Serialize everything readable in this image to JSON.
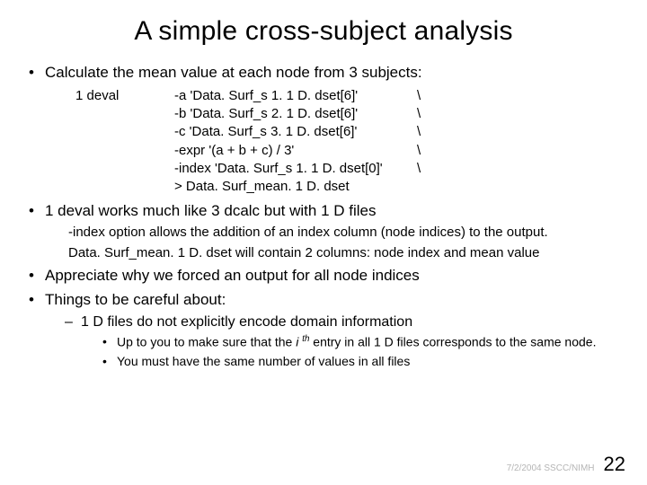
{
  "title": "A simple cross-subject analysis",
  "bullets": {
    "b1": "Calculate the mean value at each node from 3 subjects:",
    "b2": "1 deval works much like 3 dcalc but with 1 D files",
    "b3": "Appreciate why we forced an output for all node indices",
    "b4": "Things to be careful about:"
  },
  "code": {
    "cmd": "1 deval",
    "lines": [
      {
        "arg": "-a 'Data. Surf_s 1. 1 D. dset[6]'",
        "bs": "\\"
      },
      {
        "arg": "-b 'Data. Surf_s 2. 1 D. dset[6]'",
        "bs": "\\"
      },
      {
        "arg": "-c 'Data. Surf_s 3. 1 D. dset[6]'",
        "bs": "\\"
      },
      {
        "arg": "-expr '(a + b + c) / 3'",
        "bs": "\\"
      },
      {
        "arg": "-index 'Data. Surf_s 1. 1 D. dset[0]'",
        "bs": "\\"
      },
      {
        "arg": "> Data. Surf_mean. 1 D. dset",
        "bs": ""
      }
    ]
  },
  "sub_b2": {
    "l1": "-index option allows the addition of an index column (node indices) to the output.",
    "l2": "Data. Surf_mean. 1 D. dset will contain 2 columns: node index and mean value"
  },
  "b4_sub": {
    "dash1": "1 D files do not explicitly encode domain information",
    "dot1_pre": "Up to you to make sure that the ",
    "dot1_i": "i ",
    "dot1_th": "th",
    "dot1_post": " entry in all 1 D files corresponds to the same node.",
    "dot2": "You must have the same number of values in all files"
  },
  "footer": {
    "date": "7/2/2004 SSCC/NIMH",
    "page": "22"
  }
}
